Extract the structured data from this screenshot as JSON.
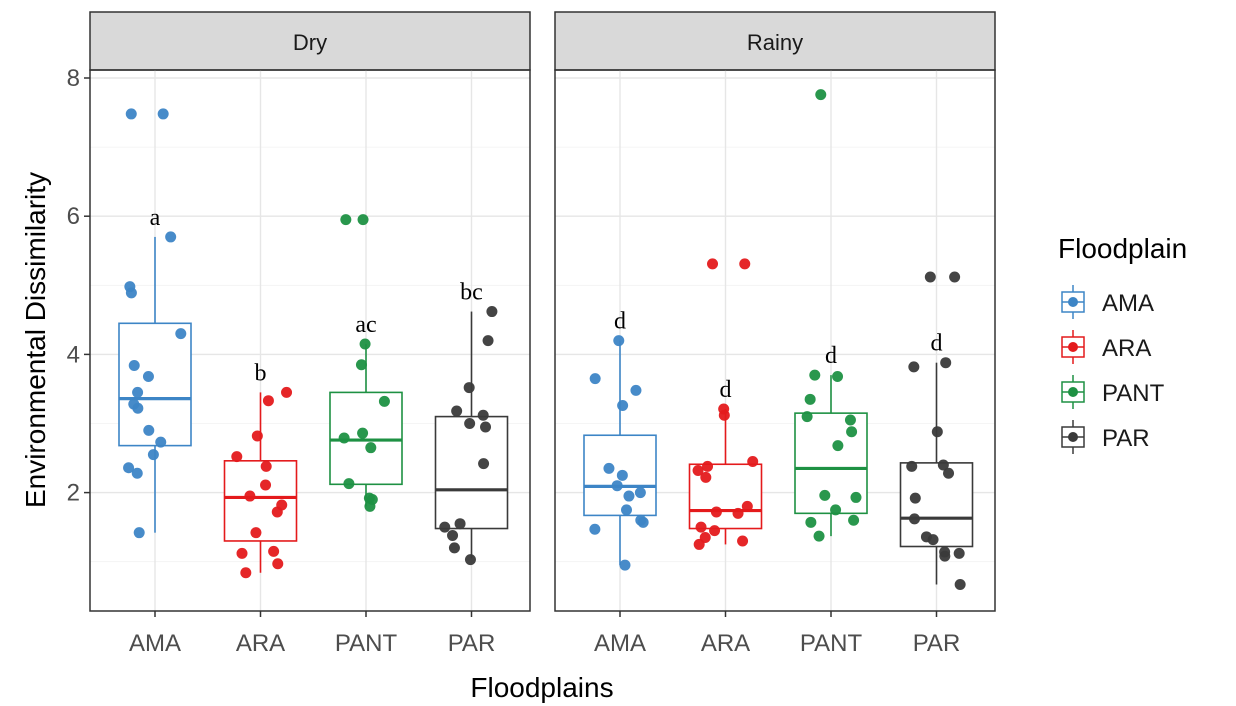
{
  "chart_data": {
    "type": "boxplot",
    "xlabel": "Floodplains",
    "ylabel": "Environmental Dissimilarity",
    "ylim": [
      0,
      8
    ],
    "yticks": [
      2,
      4,
      6,
      8
    ],
    "categories": [
      "AMA",
      "ARA",
      "PANT",
      "PAR"
    ],
    "grid": true,
    "legend": {
      "title": "Floodplain",
      "position": "right",
      "entries": [
        "AMA",
        "ARA",
        "PANT",
        "PAR"
      ]
    },
    "colors": {
      "AMA": "#3d85c6",
      "ARA": "#e41a1c",
      "PANT": "#1e9143",
      "PAR": "#3a3a3a"
    },
    "facets": [
      {
        "name": "Dry",
        "groups": [
          {
            "category": "AMA",
            "letter": "a",
            "box": {
              "lower_whisker": 1.42,
              "q1": 2.68,
              "median": 3.36,
              "q3": 4.45,
              "upper_whisker": 5.7
            },
            "points": [
              2.28,
              2.36,
              2.55,
              2.73,
              2.9,
              3.22,
              3.28,
              3.45,
              3.68,
              3.84,
              4.3,
              4.89,
              4.98,
              5.7,
              7.48,
              7.48,
              1.42
            ]
          },
          {
            "category": "ARA",
            "letter": "b",
            "box": {
              "lower_whisker": 0.84,
              "q1": 1.3,
              "median": 1.93,
              "q3": 2.46,
              "upper_whisker": 3.45
            },
            "points": [
              0.84,
              0.97,
              1.12,
              1.15,
              1.42,
              1.72,
              1.82,
              1.95,
              2.11,
              2.38,
              2.52,
              2.82,
              3.33,
              3.45
            ]
          },
          {
            "category": "PANT",
            "letter": "ac",
            "box": {
              "lower_whisker": 1.8,
              "q1": 2.12,
              "median": 2.76,
              "q3": 3.45,
              "upper_whisker": 4.15
            },
            "points": [
              1.8,
              1.9,
              1.92,
              2.13,
              2.65,
              2.79,
              2.86,
              3.32,
              3.85,
              4.15,
              5.95,
              5.95
            ]
          },
          {
            "category": "PAR",
            "letter": "bc",
            "box": {
              "lower_whisker": 1.05,
              "q1": 1.48,
              "median": 2.04,
              "q3": 3.1,
              "upper_whisker": 4.62
            },
            "points": [
              1.03,
              1.2,
              1.38,
              1.5,
              1.55,
              2.42,
              2.95,
              3.0,
              3.12,
              3.18,
              3.52,
              4.2,
              4.62
            ]
          }
        ]
      },
      {
        "name": "Rainy",
        "groups": [
          {
            "category": "AMA",
            "letter": "d",
            "box": {
              "lower_whisker": 0.95,
              "q1": 1.67,
              "median": 2.09,
              "q3": 2.83,
              "upper_whisker": 4.2
            },
            "points": [
              0.95,
              1.47,
              1.57,
              1.6,
              1.75,
              1.95,
              2.0,
              2.1,
              2.25,
              2.35,
              3.26,
              3.48,
              3.65,
              4.2
            ]
          },
          {
            "category": "ARA",
            "letter": "d",
            "box": {
              "lower_whisker": 1.25,
              "q1": 1.48,
              "median": 1.74,
              "q3": 2.41,
              "upper_whisker": 3.21
            },
            "points": [
              1.25,
              1.3,
              1.35,
              1.45,
              1.5,
              1.7,
              1.72,
              1.8,
              2.22,
              2.32,
              2.38,
              2.45,
              3.12,
              3.21,
              5.31,
              5.31
            ]
          },
          {
            "category": "PANT",
            "letter": "d",
            "box": {
              "lower_whisker": 1.37,
              "q1": 1.7,
              "median": 2.35,
              "q3": 3.15,
              "upper_whisker": 3.7
            },
            "points": [
              1.37,
              1.57,
              1.6,
              1.75,
              1.93,
              1.96,
              2.68,
              2.88,
              3.05,
              3.1,
              3.35,
              3.68,
              3.7,
              7.76
            ]
          },
          {
            "category": "PAR",
            "letter": "d",
            "box": {
              "lower_whisker": 0.67,
              "q1": 1.22,
              "median": 1.63,
              "q3": 2.43,
              "upper_whisker": 3.88
            },
            "points": [
              0.67,
              1.08,
              1.12,
              1.14,
              1.32,
              1.36,
              1.62,
              1.92,
              2.28,
              2.38,
              2.4,
              2.88,
              3.82,
              3.88,
              5.12,
              5.12
            ]
          }
        ]
      }
    ]
  }
}
